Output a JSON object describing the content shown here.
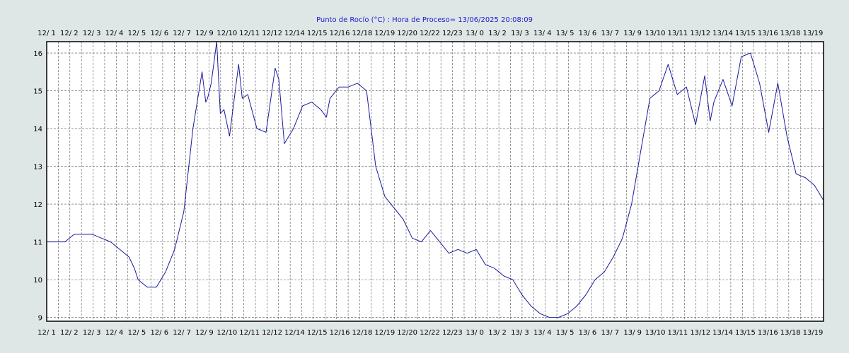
{
  "chart_data": {
    "type": "line",
    "title": "Punto de Rocío (°C)  : Hora de Proceso= 13/06/2025 20:08:09",
    "xlabel": "",
    "ylabel": "",
    "ylim": [
      8.9,
      16.3
    ],
    "y_ticks": [
      9,
      10,
      11,
      12,
      13,
      14,
      15,
      16
    ],
    "grid": true,
    "x_tick_labels": [
      "12/ 1",
      "12/ 2",
      "12/ 3",
      "12/ 4",
      "12/ 5",
      "12/ 6",
      "12/ 7",
      "12/ 9",
      "12/10",
      "12/11",
      "12/12",
      "12/14",
      "12/15",
      "12/16",
      "12/18",
      "12/19",
      "12/20",
      "12/22",
      "12/23",
      "13/ 0",
      "13/ 2",
      "13/ 3",
      "13/ 4",
      "13/ 5",
      "13/ 6",
      "13/ 7",
      "13/ 9",
      "13/10",
      "13/11",
      "13/12",
      "13/14",
      "13/15",
      "13/16",
      "13/18",
      "13/19"
    ],
    "x_range_hours": [
      1,
      43.5
    ],
    "series": [
      {
        "color": "#1a1a9e",
        "x": [
          1,
          1.5,
          2,
          2.5,
          3,
          3.5,
          4,
          4.5,
          5,
          5.5,
          5.8,
          6,
          6.5,
          7,
          7.5,
          8,
          8.5,
          9,
          9.5,
          9.7,
          9.8,
          10,
          10.3,
          10.5,
          10.7,
          11,
          11.5,
          11.7,
          12,
          12.5,
          13,
          13.5,
          13.7,
          14,
          14.5,
          15,
          15.5,
          16,
          16.3,
          16.5,
          17,
          17.5,
          18,
          18.5,
          19,
          19.5,
          20,
          20.5,
          21,
          21.5,
          22,
          22.5,
          23,
          23.5,
          24,
          24.5,
          25,
          25.5,
          26,
          26.5,
          27,
          27.5,
          28,
          28.5,
          29,
          29.5,
          30,
          30.5,
          31,
          31.5,
          32,
          32.5,
          33,
          33.5,
          34,
          34.5,
          35,
          35.5,
          36,
          36.5,
          37,
          37.3,
          37.5,
          38,
          38.5,
          39,
          39.5,
          40,
          40.5,
          41,
          41.5,
          42,
          42.5,
          43,
          43.5
        ],
        "values": [
          11.0,
          11.0,
          11.0,
          11.2,
          11.2,
          11.2,
          11.1,
          11.0,
          10.8,
          10.6,
          10.3,
          10.0,
          9.8,
          9.8,
          10.2,
          10.8,
          11.8,
          14.0,
          15.5,
          14.7,
          14.8,
          15.2,
          16.3,
          14.4,
          14.5,
          13.8,
          15.7,
          14.8,
          14.9,
          14.0,
          13.9,
          15.6,
          15.3,
          13.6,
          14.0,
          14.6,
          14.7,
          14.5,
          14.3,
          14.8,
          15.1,
          15.1,
          15.2,
          15.0,
          13.0,
          12.2,
          11.9,
          11.6,
          11.1,
          11.0,
          11.3,
          11.0,
          10.7,
          10.8,
          10.7,
          10.8,
          10.4,
          10.3,
          10.1,
          10.0,
          9.6,
          9.3,
          9.1,
          9.0,
          9.0,
          9.1,
          9.3,
          9.6,
          10.0,
          10.2,
          10.6,
          11.1,
          12.0,
          13.4,
          14.8,
          15.0,
          15.7,
          14.9,
          15.1,
          14.1,
          15.4,
          14.2,
          14.7,
          15.3,
          14.6,
          15.9,
          16.0,
          15.2,
          13.9,
          15.2,
          13.8,
          12.8,
          12.7,
          12.5,
          12.1
        ]
      }
    ]
  }
}
